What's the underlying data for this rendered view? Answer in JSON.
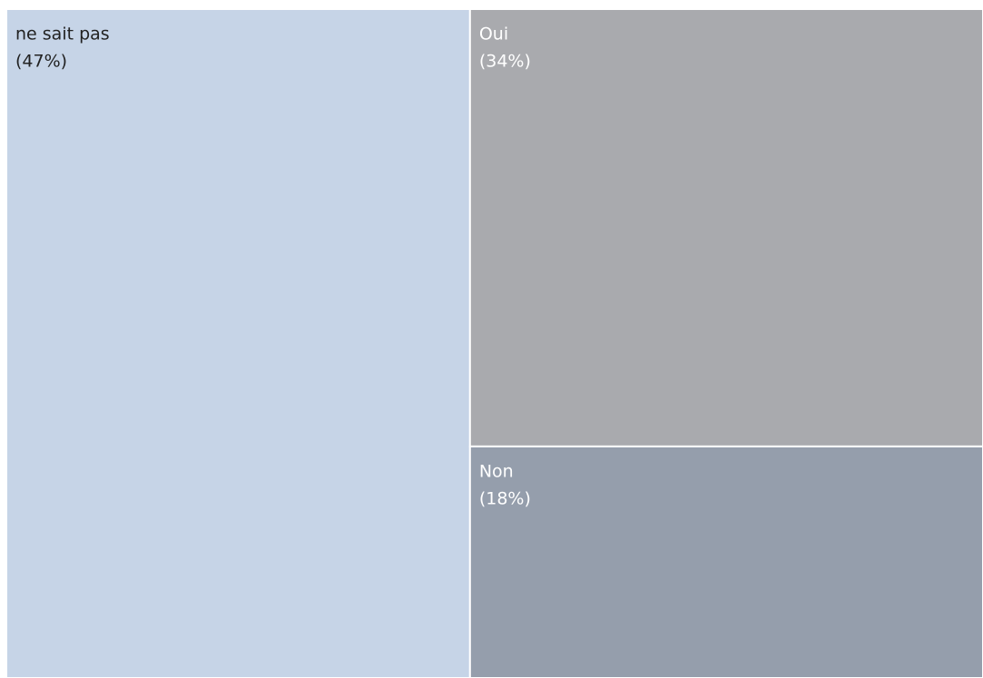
{
  "chart_data": {
    "type": "treemap",
    "categories": [
      "ne sait pas",
      "Oui",
      "Non"
    ],
    "values": [
      47,
      34,
      18
    ],
    "value_labels": [
      "(47%)",
      "(34%)",
      "(18%)"
    ],
    "colors": [
      "#c6d4e7",
      "#a9aaae",
      "#959eac"
    ],
    "label_colors": [
      "#222222",
      "#ffffff",
      "#ffffff"
    ]
  }
}
